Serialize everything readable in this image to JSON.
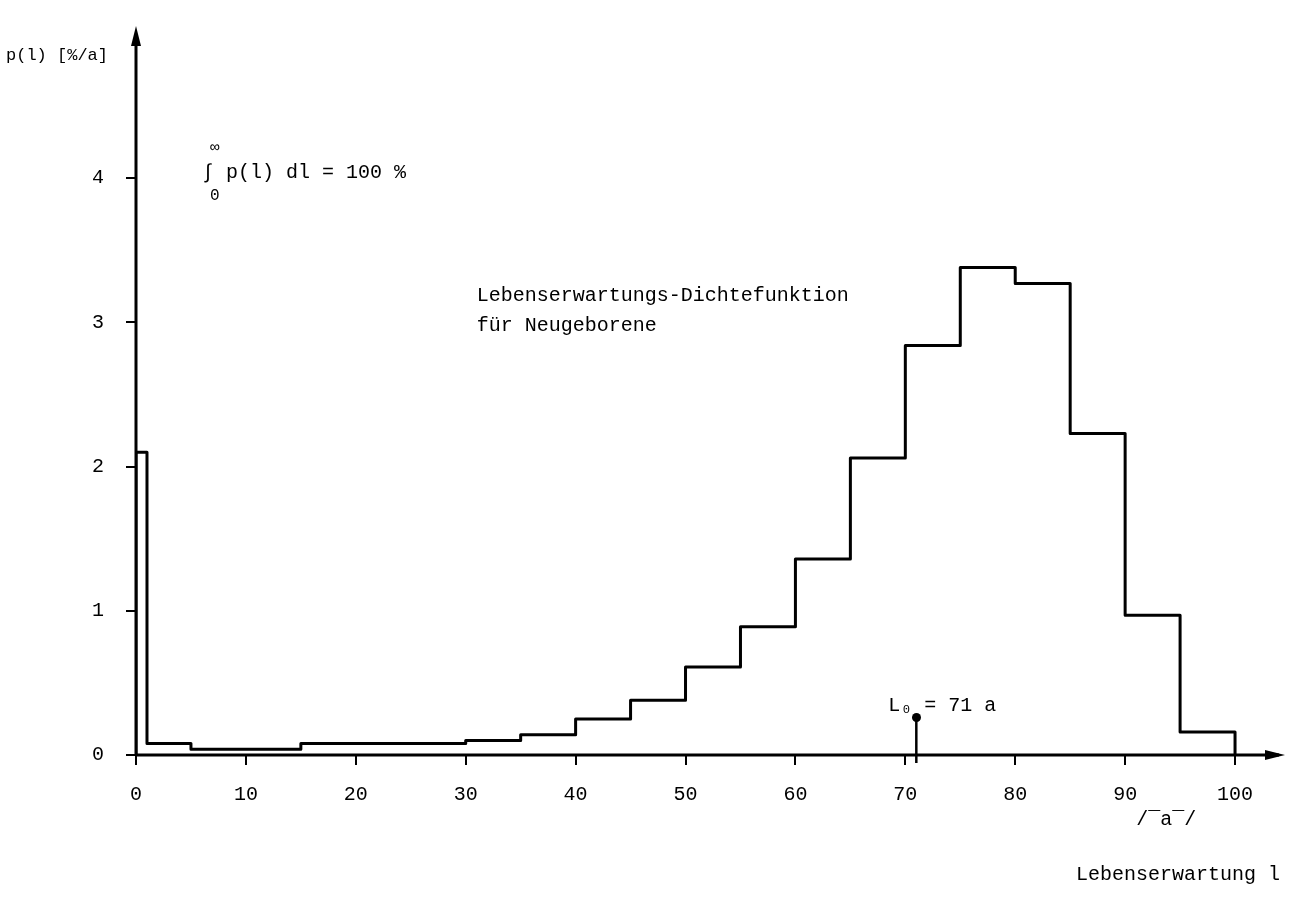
{
  "chart_data": {
    "type": "histogram",
    "bins": [
      0,
      1,
      5,
      10,
      15,
      20,
      25,
      30,
      35,
      40,
      45,
      50,
      55,
      60,
      65,
      70,
      75,
      80,
      85,
      90,
      95,
      100
    ],
    "values": [
      2.1,
      0.08,
      0.04,
      0.04,
      0.08,
      0.08,
      0.08,
      0.1,
      0.14,
      0.25,
      0.38,
      0.61,
      0.89,
      1.36,
      2.06,
      2.84,
      3.38,
      3.27,
      2.23,
      0.97,
      0.16
    ],
    "color": "#000000",
    "xlim": [
      0,
      104
    ],
    "xticks": [
      0,
      10,
      20,
      30,
      40,
      50,
      60,
      70,
      80,
      90,
      100
    ],
    "ylim": [
      0,
      5
    ],
    "yticks": [
      0,
      1,
      2,
      3,
      4
    ],
    "xlabel": "Lebenserwartung l",
    "ylabel": "p(l) [%/a]",
    "annotations": [
      "∫$_{0}$$^{∞}$ p(l) dl = 100 %",
      "Lebenserwartungs-Dichtefunktion\nfür Neugeborene",
      "/‾a‾/"
    ],
    "ref_lines": [
      {
        "axis": "x",
        "value": 71,
        "label": "L₀ = 71 a"
      }
    ],
    "grid": false,
    "legend": false
  }
}
